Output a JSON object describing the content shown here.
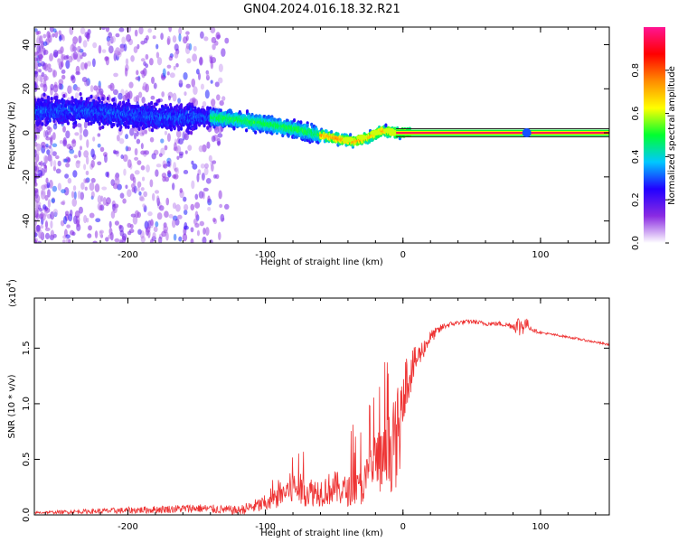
{
  "figure": {
    "title": "GN04.2024.016.18.32.R21"
  },
  "chart_data": [
    {
      "type": "heatmap",
      "xlabel": "Height of straight line (km)",
      "ylabel": "Frequency (Hz)",
      "xlim": [
        -268,
        150
      ],
      "ylim": [
        -50,
        48
      ],
      "xticks": [
        -200,
        -100,
        0,
        100
      ],
      "yticks": [
        -40,
        -20,
        0,
        20,
        40
      ],
      "colorbar": {
        "label": "Normalized spectral amplitude",
        "range": [
          0,
          1
        ],
        "ticks": [
          "0.0",
          "0.2",
          "0.4",
          "0.6",
          "0.8"
        ],
        "colors": [
          "#ffffff",
          "#8a2be2",
          "#2200ff",
          "#00c8ff",
          "#00ff30",
          "#ffff00",
          "#ff8c00",
          "#ff0000",
          "#ff1493"
        ]
      },
      "ridge": {
        "description_points_x": [
          -268,
          -230,
          -200,
          -170,
          -140,
          -120,
          -100,
          -80,
          -60,
          -45,
          -35,
          -25,
          -15,
          -5,
          0,
          50,
          100,
          150
        ],
        "description_points_y": [
          10,
          10,
          8,
          7,
          7,
          6,
          4,
          2,
          -1,
          -3,
          -4,
          -2,
          1,
          0,
          0,
          0,
          0,
          0
        ]
      }
    },
    {
      "type": "line",
      "xlabel": "Height of straight line (km)",
      "ylabel": "SNR (10 * v/v)",
      "multiplier_label": "(x10",
      "multiplier_exp": "4",
      "xlim": [
        -268,
        150
      ],
      "ylim": [
        0,
        1.95
      ],
      "xticks": [
        -200,
        -100,
        0,
        100
      ],
      "yticks": [
        0.0,
        0.5,
        1.0,
        1.5
      ],
      "series": [
        {
          "color": "#ee3333",
          "envelope_x": [
            -268,
            -200,
            -150,
            -120,
            -100,
            -90,
            -80,
            -70,
            -60,
            -50,
            -40,
            -30,
            -25,
            -20,
            -15,
            -10,
            -5,
            0,
            10,
            20,
            30,
            40,
            50,
            60,
            70,
            80,
            85,
            90,
            95,
            100,
            120,
            150
          ],
          "envelope_y": [
            0.02,
            0.04,
            0.06,
            0.04,
            0.1,
            0.25,
            0.35,
            0.3,
            0.3,
            0.35,
            0.3,
            0.35,
            0.5,
            0.7,
            0.65,
            0.8,
            0.95,
            1.15,
            1.4,
            1.6,
            1.7,
            1.73,
            1.74,
            1.72,
            1.72,
            1.7,
            1.7,
            1.72,
            1.66,
            1.64,
            1.6,
            1.53
          ],
          "noise_y": [
            0.01,
            0.03,
            0.04,
            0.04,
            0.08,
            0.18,
            0.25,
            0.25,
            0.25,
            0.3,
            0.35,
            0.45,
            0.55,
            0.6,
            0.55,
            0.45,
            0.4,
            0.3,
            0.12,
            0.06,
            0.03,
            0.02,
            0.02,
            0.02,
            0.02,
            0.03,
            0.12,
            0.05,
            0.02,
            0.01,
            0.01,
            0.01
          ]
        }
      ]
    }
  ]
}
